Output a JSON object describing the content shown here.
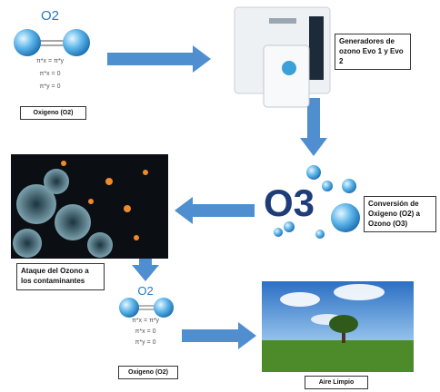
{
  "nodes": [
    {
      "formula": "O2",
      "lines": [
        "π*x = π*y",
        "π*x = 0",
        "π*y = 0"
      ],
      "label": "Oxigeno (O2)"
    },
    {
      "label": "Generadores de ozono Evo 1 y Evo 2"
    },
    {
      "formula": "O3",
      "label": "Conversión de Oxigeno (O2) a Ozono (O3)"
    },
    {
      "label": "Ataque del Ozono a los contaminantes"
    },
    {
      "formula": "O2",
      "lines": [
        "π*x = π*y",
        "π*x = 0",
        "π*y = 0"
      ],
      "label": "Oxigeno (O2)"
    },
    {
      "label": "Aire Limpio"
    }
  ]
}
